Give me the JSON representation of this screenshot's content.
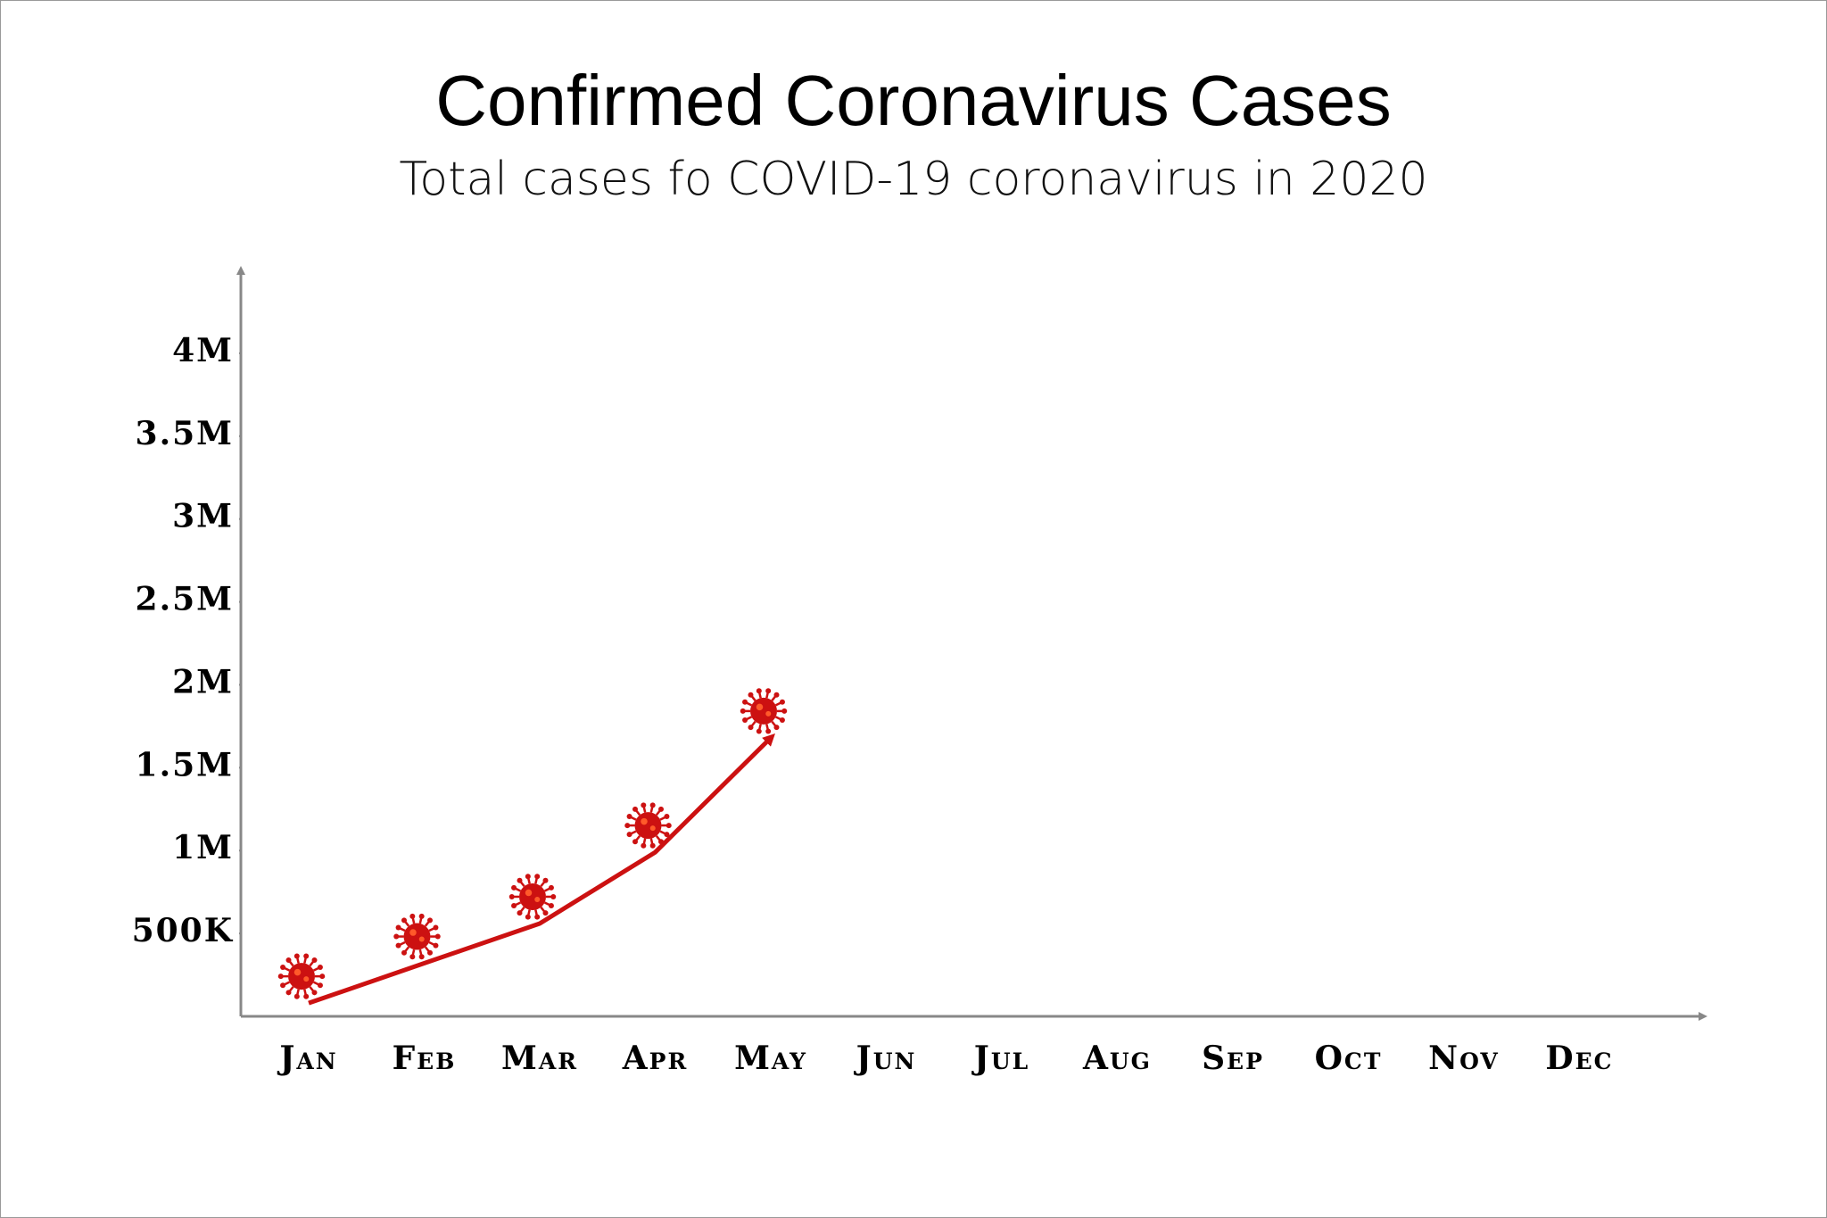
{
  "chart_data": {
    "type": "line",
    "title": "Confirmed Coronavirus Cases",
    "subtitle": "Total cases fo COVID-19 coronavirus in 2020",
    "categories": [
      "Jan",
      "Feb",
      "Mar",
      "Apr",
      "May",
      "Jun",
      "Jul",
      "Aug",
      "Sep",
      "Oct",
      "Nov",
      "Dec"
    ],
    "series": [
      {
        "name": "Total cases",
        "color": "#cc1111",
        "values": [
          80000,
          320000,
          560000,
          990000,
          1680000,
          null,
          null,
          null,
          null,
          null,
          null,
          null
        ]
      }
    ],
    "ylim": [
      0,
      4500000
    ],
    "yticks": [
      {
        "value": 500000,
        "label": "500K"
      },
      {
        "value": 1000000,
        "label": "1M"
      },
      {
        "value": 1500000,
        "label": "1.5M"
      },
      {
        "value": 2000000,
        "label": "2M"
      },
      {
        "value": 2500000,
        "label": "2.5M"
      },
      {
        "value": 3000000,
        "label": "3M"
      },
      {
        "value": 3500000,
        "label": "3.5M"
      },
      {
        "value": 4000000,
        "label": "4M"
      }
    ],
    "grid": false
  }
}
